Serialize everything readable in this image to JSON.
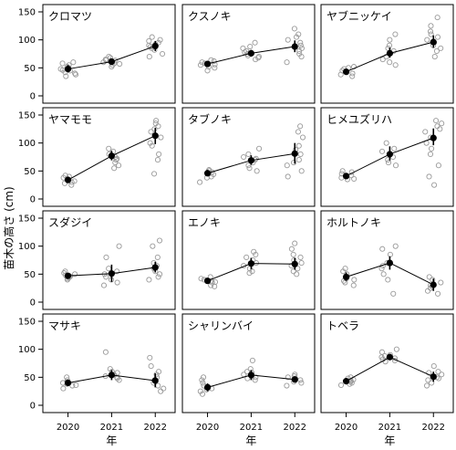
{
  "chart_data": {
    "type": "scatter",
    "ylabel": "苗木の高さ (cm)",
    "xlabel": "年",
    "x": [
      2020,
      2021,
      2022
    ],
    "ylim": [
      0,
      150
    ],
    "yticks": [
      0,
      50,
      100,
      150
    ],
    "xticks": [
      "2020",
      "2021",
      "2022"
    ],
    "grid": false,
    "layout": "4x3 small multiples",
    "colors": {
      "mean": "#000000",
      "raw": "#9a9a9a"
    },
    "panels": [
      {
        "name": "クロマツ",
        "mean": [
          48,
          61,
          89
        ],
        "ci": [
          [
            42,
            55
          ],
          [
            55,
            67
          ],
          [
            80,
            98
          ]
        ],
        "raw": [
          [
            40,
            48,
            55,
            35,
            52,
            45,
            58,
            42,
            50,
            38,
            60,
            46
          ],
          [
            55,
            58,
            62,
            65,
            70,
            52,
            60,
            64,
            68,
            57,
            63
          ],
          [
            75,
            82,
            88,
            95,
            100,
            85,
            92,
            70,
            98,
            105,
            90
          ]
        ]
      },
      {
        "name": "クスノキ",
        "mean": [
          57,
          76,
          88
        ],
        "ci": [
          [
            52,
            62
          ],
          [
            70,
            82
          ],
          [
            78,
            99
          ]
        ],
        "raw": [
          [
            50,
            55,
            60,
            45,
            62,
            58,
            52,
            64,
            56
          ],
          [
            65,
            70,
            78,
            85,
            95,
            72,
            80,
            68,
            75,
            88
          ],
          [
            75,
            80,
            90,
            100,
            110,
            95,
            85,
            105,
            120,
            70,
            60
          ]
        ]
      },
      {
        "name": "ヤブニッケイ",
        "mean": [
          43,
          76,
          96
        ],
        "ci": [
          [
            39,
            48
          ],
          [
            68,
            86
          ],
          [
            86,
            108
          ]
        ],
        "raw": [
          [
            38,
            42,
            48,
            35,
            50,
            45,
            40,
            52
          ],
          [
            60,
            70,
            80,
            90,
            100,
            65,
            75,
            110,
            85,
            55
          ],
          [
            80,
            90,
            100,
            110,
            125,
            140,
            85,
            95,
            70,
            105,
            115
          ]
        ]
      },
      {
        "name": "ヤマモモ",
        "mean": [
          34,
          77,
          113
        ],
        "ci": [
          [
            30,
            39
          ],
          [
            69,
            86
          ],
          [
            98,
            127
          ]
        ],
        "raw": [
          [
            28,
            32,
            36,
            40,
            25,
            38,
            42,
            30
          ],
          [
            60,
            70,
            80,
            85,
            90,
            65,
            75,
            55,
            72
          ],
          [
            80,
            95,
            110,
            125,
            135,
            140,
            100,
            120,
            70,
            130,
            45
          ]
        ]
      },
      {
        "name": "タブノキ",
        "mean": [
          46,
          69,
          81
        ],
        "ci": [
          [
            42,
            51
          ],
          [
            61,
            78
          ],
          [
            63,
            100
          ]
        ],
        "raw": [
          [
            40,
            45,
            50,
            38,
            52,
            30,
            48,
            44
          ],
          [
            55,
            60,
            70,
            75,
            80,
            65,
            50,
            90,
            72
          ],
          [
            50,
            60,
            80,
            95,
            110,
            130,
            70,
            65,
            40,
            120,
            88
          ]
        ]
      },
      {
        "name": "ヒメユズリハ",
        "mean": [
          41,
          80,
          109
        ],
        "ci": [
          [
            37,
            46
          ],
          [
            69,
            94
          ],
          [
            96,
            126
          ]
        ],
        "raw": [
          [
            35,
            40,
            45,
            50,
            38,
            42,
            48,
            36
          ],
          [
            60,
            70,
            80,
            90,
            100,
            65,
            75,
            85
          ],
          [
            80,
            100,
            120,
            140,
            130,
            110,
            90,
            60,
            40,
            25,
            135,
            125
          ]
        ]
      },
      {
        "name": "スダジイ",
        "mean": [
          47,
          51,
          62
        ],
        "ci": [
          [
            43,
            51
          ],
          [
            36,
            67
          ],
          [
            53,
            72
          ]
        ],
        "raw": [
          [
            42,
            45,
            50,
            55,
            40,
            48,
            52,
            46,
            44
          ],
          [
            30,
            40,
            50,
            60,
            80,
            100,
            45,
            35,
            55
          ],
          [
            40,
            50,
            60,
            70,
            80,
            100,
            110,
            55,
            65,
            45
          ]
        ]
      },
      {
        "name": "エノキ",
        "mean": [
          38,
          69,
          68
        ],
        "ci": [
          [
            34,
            43
          ],
          [
            59,
            79
          ],
          [
            58,
            79
          ]
        ],
        "raw": [
          [
            30,
            35,
            40,
            45,
            28,
            42,
            38,
            36
          ],
          [
            55,
            60,
            70,
            80,
            90,
            65,
            75,
            85,
            52
          ],
          [
            50,
            60,
            70,
            80,
            95,
            105,
            55,
            65,
            75,
            85
          ]
        ]
      },
      {
        "name": "ホルトノキ",
        "mean": [
          45,
          70,
          31
        ],
        "ci": [
          [
            38,
            53
          ],
          [
            58,
            82
          ],
          [
            20,
            42
          ]
        ],
        "raw": [
          [
            35,
            40,
            45,
            55,
            60,
            50,
            38,
            42,
            30
          ],
          [
            50,
            60,
            70,
            85,
            95,
            100,
            65,
            40,
            15
          ],
          [
            20,
            25,
            30,
            40,
            45,
            15,
            35,
            28
          ]
        ]
      },
      {
        "name": "マサキ",
        "mean": [
          40,
          54,
          44
        ],
        "ci": [
          [
            35,
            45
          ],
          [
            45,
            63
          ],
          [
            32,
            57
          ]
        ],
        "raw": [
          [
            30,
            35,
            40,
            45,
            50,
            38,
            42,
            36
          ],
          [
            45,
            50,
            55,
            65,
            95,
            52,
            48,
            60,
            58
          ],
          [
            30,
            40,
            50,
            60,
            70,
            85,
            35,
            25,
            45,
            55
          ]
        ]
      },
      {
        "name": "シャリンバイ",
        "mean": [
          32,
          54,
          46
        ],
        "ci": [
          [
            25,
            39
          ],
          [
            45,
            63
          ],
          [
            41,
            51
          ]
        ],
        "raw": [
          [
            20,
            25,
            30,
            35,
            45,
            50,
            28,
            40,
            33
          ],
          [
            45,
            50,
            55,
            60,
            65,
            80,
            48,
            52,
            58
          ],
          [
            40,
            45,
            50,
            55,
            35,
            48,
            42,
            52
          ]
        ]
      },
      {
        "name": "トベラ",
        "mean": [
          43,
          86,
          51
        ],
        "ci": [
          [
            39,
            48
          ],
          [
            81,
            92
          ],
          [
            42,
            60
          ]
        ],
        "raw": [
          [
            38,
            42,
            46,
            50,
            36,
            44,
            40,
            48
          ],
          [
            78,
            82,
            86,
            90,
            95,
            100,
            80,
            88,
            84
          ],
          [
            40,
            45,
            55,
            60,
            70,
            50,
            35,
            48,
            58
          ]
        ]
      }
    ]
  }
}
